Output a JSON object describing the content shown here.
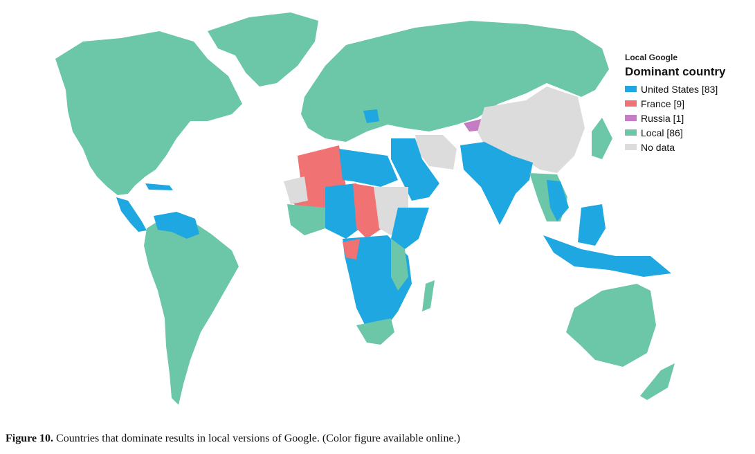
{
  "legend": {
    "title": "Local Google",
    "subtitle": "Dominant country",
    "items": [
      {
        "label": "United States [83]",
        "color": "#1ea7e1"
      },
      {
        "label": "France [9]",
        "color": "#f07272"
      },
      {
        "label": "Russia [1]",
        "color": "#c47dc4"
      },
      {
        "label": "Local [86]",
        "color": "#6cc6a8"
      },
      {
        "label": "No data",
        "color": "#dcdcdc"
      }
    ]
  },
  "caption": {
    "label": "Figure 10.",
    "text": "Countries that dominate results in local versions of Google. (Color figure available online.)"
  }
}
